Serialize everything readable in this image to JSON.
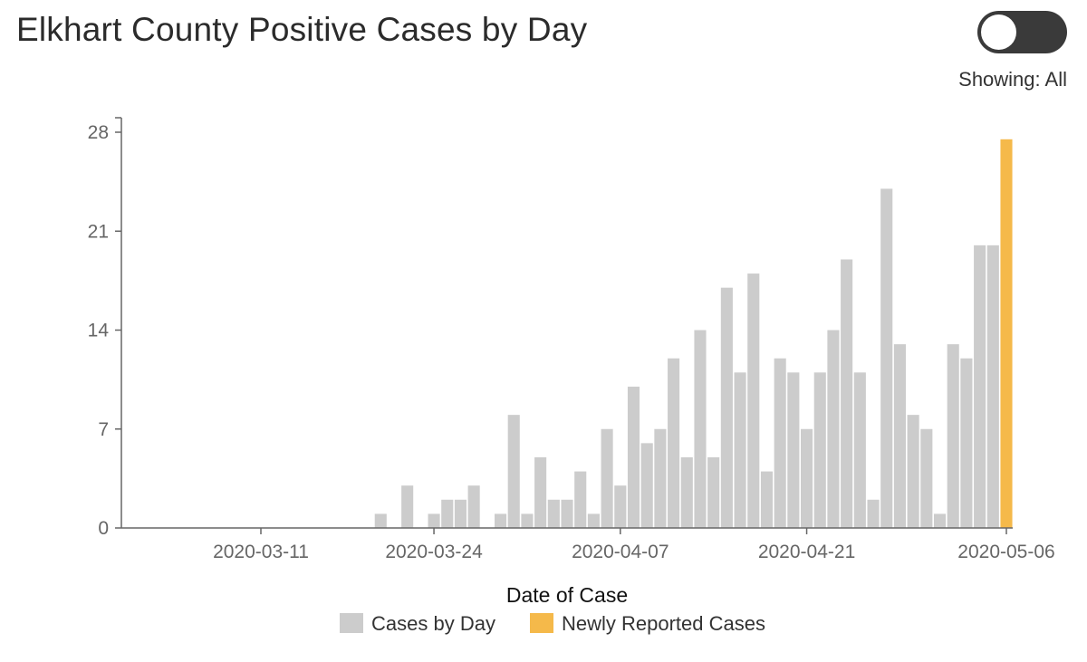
{
  "header": {
    "title": "Elkhart County Positive Cases by Day",
    "showing": "Showing: All"
  },
  "toggle": {
    "state": "off"
  },
  "chart_data": {
    "type": "bar",
    "title": "Elkhart County Positive Cases by Day",
    "xlabel": "Date of Case",
    "ylabel": "",
    "ylim": [
      0,
      28
    ],
    "yticks": [
      0,
      7,
      14,
      21,
      28
    ],
    "xticks": [
      "2020-03-11",
      "2020-03-24",
      "2020-04-07",
      "2020-04-21",
      "2020-05-06"
    ],
    "x_range": [
      "2020-02-26",
      "2020-05-06"
    ],
    "categories": [
      "2020-03-20",
      "2020-03-21",
      "2020-03-22",
      "2020-03-23",
      "2020-03-24",
      "2020-03-25",
      "2020-03-26",
      "2020-03-27",
      "2020-03-28",
      "2020-03-29",
      "2020-03-30",
      "2020-03-31",
      "2020-04-01",
      "2020-04-02",
      "2020-04-03",
      "2020-04-04",
      "2020-04-05",
      "2020-04-06",
      "2020-04-07",
      "2020-04-08",
      "2020-04-09",
      "2020-04-10",
      "2020-04-11",
      "2020-04-12",
      "2020-04-13",
      "2020-04-14",
      "2020-04-15",
      "2020-04-16",
      "2020-04-17",
      "2020-04-18",
      "2020-04-19",
      "2020-04-20",
      "2020-04-21",
      "2020-04-22",
      "2020-04-23",
      "2020-04-24",
      "2020-04-25",
      "2020-04-26",
      "2020-04-27",
      "2020-04-28",
      "2020-04-29",
      "2020-04-30",
      "2020-05-01",
      "2020-05-02",
      "2020-05-03",
      "2020-05-04",
      "2020-05-05",
      "2020-05-06"
    ],
    "series": [
      {
        "name": "Cases by Day",
        "color": "#cccccc",
        "values": [
          1,
          0,
          3,
          0,
          1,
          2,
          2,
          3,
          0,
          1,
          8,
          1,
          5,
          2,
          2,
          4,
          1,
          7,
          3,
          10,
          6,
          7,
          12,
          5,
          14,
          5,
          17,
          11,
          18,
          4,
          12,
          11,
          7,
          11,
          14,
          19,
          11,
          2,
          24,
          13,
          8,
          7,
          1,
          13,
          12,
          20,
          20,
          0
        ]
      },
      {
        "name": "Newly Reported Cases",
        "color": "#f5b94a",
        "values": [
          0,
          0,
          0,
          0,
          0,
          0,
          0,
          0,
          0,
          0,
          0,
          0,
          0,
          0,
          0,
          0,
          0,
          0,
          0,
          0,
          0,
          0,
          0,
          0,
          0,
          0,
          0,
          0,
          0,
          0,
          0,
          0,
          0,
          0,
          0,
          0,
          0,
          0,
          0,
          0,
          0,
          0,
          0,
          0,
          0,
          0,
          0,
          27.5
        ]
      }
    ],
    "legend": {
      "position": "bottom"
    }
  }
}
